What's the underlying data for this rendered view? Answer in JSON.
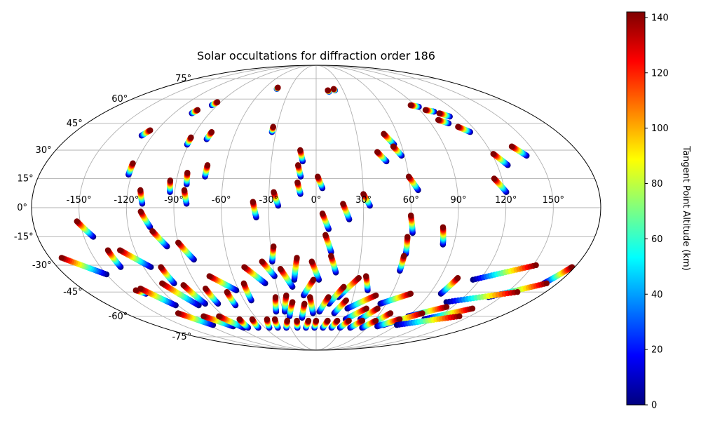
{
  "chart_data": {
    "type": "scatter",
    "projection": "mollweide",
    "title": "Solar occultations for diffraction order 186",
    "lon_ticks": [
      "-150°",
      "-120°",
      "-90°",
      "-60°",
      "-30°",
      "0°",
      "30°",
      "60°",
      "90°",
      "120°",
      "150°"
    ],
    "lat_ticks": [
      "75°",
      "60°",
      "45°",
      "30°",
      "15°",
      "0°",
      "-15°",
      "-30°",
      "-45°",
      "-60°",
      "-75°"
    ],
    "grid": true,
    "colorbar": {
      "label": "Tangent Point Altitude (km)",
      "ticks": [
        "140",
        "120",
        "100",
        "80",
        "60",
        "40",
        "20",
        "0"
      ],
      "range": [
        0,
        142
      ],
      "colormap": "jet",
      "position": "right"
    },
    "occultations": [
      {
        "lon_top": -45,
        "lat_top": 68,
        "lon_bot": -45,
        "lat_bot": 67
      },
      {
        "lon_top": 13,
        "lat_top": 66,
        "lon_bot": 14,
        "lat_bot": 65
      },
      {
        "lon_top": 20,
        "lat_top": 67,
        "lon_bot": 21,
        "lat_bot": 66
      },
      {
        "lon_top": -93,
        "lat_top": 58,
        "lon_bot": -95,
        "lat_bot": 56
      },
      {
        "lon_top": -103,
        "lat_top": 53,
        "lon_bot": -105,
        "lat_bot": 51
      },
      {
        "lon_top": -125,
        "lat_top": 41,
        "lon_bot": -128,
        "lat_bot": 38
      },
      {
        "lon_top": -33,
        "lat_top": 43,
        "lon_bot": -33,
        "lat_bot": 40
      },
      {
        "lon_top": -78,
        "lat_top": 40,
        "lon_bot": -79,
        "lat_bot": 36
      },
      {
        "lon_top": -91,
        "lat_top": 37,
        "lon_bot": -91,
        "lat_bot": 33
      },
      {
        "lon_top": -122,
        "lat_top": 23,
        "lon_bot": -122,
        "lat_bot": 17
      },
      {
        "lon_top": -72,
        "lat_top": 22,
        "lon_bot": -72,
        "lat_bot": 16
      },
      {
        "lon_top": -11,
        "lat_top": 30,
        "lon_bot": -9,
        "lat_bot": 24
      },
      {
        "lon_top": -12,
        "lat_top": 22,
        "lon_bot": -10,
        "lat_bot": 16
      },
      {
        "lon_top": -12,
        "lat_top": 13,
        "lon_bot": -10,
        "lat_bot": 7
      },
      {
        "lon_top": 1,
        "lat_top": 16,
        "lon_bot": 4,
        "lat_bot": 10
      },
      {
        "lon_top": -84,
        "lat_top": 18,
        "lon_bot": -83,
        "lat_bot": 12
      },
      {
        "lon_top": -94,
        "lat_top": 14,
        "lon_bot": -93,
        "lat_bot": 8
      },
      {
        "lon_top": -84,
        "lat_top": 9,
        "lon_bot": -82,
        "lat_bot": 2
      },
      {
        "lon_top": -112,
        "lat_top": 9,
        "lon_bot": -110,
        "lat_bot": 2
      },
      {
        "lon_top": -27,
        "lat_top": 8,
        "lon_bot": -24,
        "lat_bot": 1
      },
      {
        "lon_top": -40,
        "lat_top": 3,
        "lon_bot": -38,
        "lat_bot": -5
      },
      {
        "lon_top": 30,
        "lat_top": 7,
        "lon_bot": 34,
        "lat_bot": 1
      },
      {
        "lon_top": 17,
        "lat_top": 2,
        "lon_bot": 21,
        "lat_bot": -6
      },
      {
        "lon_top": 50,
        "lat_top": 39,
        "lon_bot": 55,
        "lat_bot": 33
      },
      {
        "lon_top": 42,
        "lat_top": 29,
        "lon_bot": 47,
        "lat_bot": 24
      },
      {
        "lon_top": 54,
        "lat_top": 32,
        "lon_bot": 58,
        "lat_bot": 27
      },
      {
        "lon_top": 60,
        "lat_top": 16,
        "lon_bot": 65,
        "lat_bot": 9
      },
      {
        "lon_top": 115,
        "lat_top": 15,
        "lon_bot": 121,
        "lat_bot": 8
      },
      {
        "lon_top": 121,
        "lat_top": 28,
        "lon_bot": 127,
        "lat_bot": 22
      },
      {
        "lon_top": 137,
        "lat_top": 32,
        "lon_bot": 143,
        "lat_bot": 27
      },
      {
        "lon_top": 86,
        "lat_top": 56,
        "lon_bot": 92,
        "lat_bot": 55
      },
      {
        "lon_top": 95,
        "lat_top": 53,
        "lon_bot": 101,
        "lat_bot": 52
      },
      {
        "lon_top": 104,
        "lat_top": 51,
        "lon_bot": 110,
        "lat_bot": 49
      },
      {
        "lon_top": 98,
        "lat_top": 47,
        "lon_bot": 104,
        "lat_bot": 45
      },
      {
        "lon_top": 109,
        "lat_top": 43,
        "lon_bot": 115,
        "lat_bot": 40
      },
      {
        "lon_top": -111,
        "lat_top": -2,
        "lon_bot": -106,
        "lat_bot": -10
      },
      {
        "lon_top": -105,
        "lat_top": -12,
        "lon_bot": -98,
        "lat_bot": -20
      },
      {
        "lon_top": -152,
        "lat_top": -7,
        "lon_bot": -144,
        "lat_bot": -15
      },
      {
        "lon_top": 4,
        "lat_top": -3,
        "lon_bot": 8,
        "lat_bot": -11
      },
      {
        "lon_top": 6,
        "lat_top": -14,
        "lon_bot": 10,
        "lat_bot": -23
      },
      {
        "lon_top": 60,
        "lat_top": -4,
        "lon_bot": 62,
        "lat_bot": -13
      },
      {
        "lon_top": 59,
        "lat_top": -15,
        "lon_bot": 60,
        "lat_bot": -24
      },
      {
        "lon_top": 59,
        "lat_top": -25,
        "lon_bot": 59,
        "lat_bot": -33
      },
      {
        "lon_top": 81,
        "lat_top": -10,
        "lon_bot": 83,
        "lat_bot": -19
      },
      {
        "lon_top": -90,
        "lat_top": -18,
        "lon_bot": -83,
        "lat_bot": -27
      },
      {
        "lon_top": -138,
        "lat_top": -22,
        "lon_bot": -136,
        "lat_bot": -31
      },
      {
        "lon_top": -130,
        "lat_top": -22,
        "lon_bot": -115,
        "lat_bot": -31
      },
      {
        "lon_top": -172,
        "lat_top": -26,
        "lon_bot": -150,
        "lat_bot": -35
      },
      {
        "lon_top": -28,
        "lat_top": -20,
        "lon_bot": -30,
        "lat_bot": -28
      },
      {
        "lon_top": -37,
        "lat_top": -28,
        "lon_bot": -30,
        "lat_bot": -36
      },
      {
        "lon_top": -25,
        "lat_top": -32,
        "lon_bot": -18,
        "lat_bot": -42
      },
      {
        "lon_top": -50,
        "lat_top": -31,
        "lon_bot": -38,
        "lat_bot": -40
      },
      {
        "lon_top": -13,
        "lat_top": -26,
        "lon_bot": -16,
        "lat_bot": -38
      },
      {
        "lon_top": -3,
        "lat_top": -28,
        "lon_bot": 2,
        "lat_bot": -38
      },
      {
        "lon_top": 10,
        "lat_top": -25,
        "lon_bot": 14,
        "lat_bot": -34
      },
      {
        "lon_top": -77,
        "lat_top": -36,
        "lon_bot": -62,
        "lat_bot": -44
      },
      {
        "lon_top": -108,
        "lat_top": -31,
        "lon_bot": -106,
        "lat_bot": -40
      },
      {
        "lon_top": -140,
        "lat_top": -44,
        "lon_bot": -135,
        "lat_bot": -46
      },
      {
        "lon_top": 36,
        "lat_top": -36,
        "lon_bot": 40,
        "lat_bot": -44
      },
      {
        "lon_top": 31,
        "lat_top": -37,
        "lon_bot": 18,
        "lat_bot": -48
      },
      {
        "lon_top": 21,
        "lat_top": -42,
        "lon_bot": 11,
        "lat_bot": -52
      },
      {
        "lon_top": -2,
        "lat_top": -38,
        "lon_bot": -10,
        "lat_bot": -47
      },
      {
        "lon_top": -5,
        "lat_top": -48,
        "lon_bot": -3,
        "lat_bot": -58
      },
      {
        "lon_top": 103,
        "lat_top": -37,
        "lon_bot": 99,
        "lat_bot": -46
      },
      {
        "lon_top": 152,
        "lat_top": -30,
        "lon_bot": 115,
        "lat_bot": -38
      },
      {
        "lon_top": 178,
        "lat_top": -31,
        "lon_bot": 170,
        "lat_bot": -40
      },
      {
        "lon_top": 172,
        "lat_top": -40,
        "lon_bot": 140,
        "lat_bot": -48
      },
      {
        "lon_top": 158,
        "lat_top": -45,
        "lon_bot": 110,
        "lat_bot": -51
      },
      {
        "lon_top": 75,
        "lat_top": -46,
        "lon_bot": 55,
        "lat_bot": -52
      },
      {
        "lon_top": 48,
        "lat_top": -47,
        "lon_bot": 28,
        "lat_bot": -55
      },
      {
        "lon_top": 45,
        "lat_top": -55,
        "lon_bot": 30,
        "lat_bot": -62
      },
      {
        "lon_top": -115,
        "lat_top": -40,
        "lon_bot": -102,
        "lat_bot": -53
      },
      {
        "lon_top": -100,
        "lat_top": -41,
        "lon_bot": -95,
        "lat_bot": -52
      },
      {
        "lon_top": -85,
        "lat_top": -43,
        "lon_bot": -84,
        "lat_bot": -52
      },
      {
        "lon_top": -70,
        "lat_top": -45,
        "lon_bot": -70,
        "lat_bot": -53
      },
      {
        "lon_top": -54,
        "lat_top": -40,
        "lon_bot": -54,
        "lat_bot": -50
      },
      {
        "lon_top": -135,
        "lat_top": -43,
        "lon_bot": -122,
        "lat_bot": -53
      },
      {
        "lon_top": -33,
        "lat_top": -48,
        "lon_bot": -37,
        "lat_bot": -57
      },
      {
        "lon_top": -24,
        "lat_top": -47,
        "lon_bot": -29,
        "lat_bot": -57
      },
      {
        "lon_top": -20,
        "lat_top": -51,
        "lon_bot": -26,
        "lat_bot": -60
      },
      {
        "lon_top": -10,
        "lat_top": -52,
        "lon_bot": -14,
        "lat_bot": -61
      },
      {
        "lon_top": 10,
        "lat_top": -48,
        "lon_bot": 3,
        "lat_bot": -57
      },
      {
        "lon_top": 25,
        "lat_top": -50,
        "lon_bot": 17,
        "lat_bot": -58
      },
      {
        "lon_top": 55,
        "lat_top": -55,
        "lon_bot": 45,
        "lat_bot": -62
      },
      {
        "lon_top": 70,
        "lat_top": -58,
        "lon_bot": 62,
        "lat_bot": -64
      },
      {
        "lon_top": 115,
        "lat_top": -54,
        "lon_bot": 90,
        "lat_bot": -60
      },
      {
        "lon_top": 140,
        "lat_top": -55,
        "lon_bot": 110,
        "lat_bot": -62
      },
      {
        "lon_top": 100,
        "lat_top": -58,
        "lon_bot": 75,
        "lat_bot": -66
      },
      {
        "lon_top": -130,
        "lat_top": -58,
        "lon_bot": -115,
        "lat_bot": -66
      },
      {
        "lon_top": -110,
        "lat_top": -60,
        "lon_bot": -95,
        "lat_bot": -67
      },
      {
        "lon_top": -95,
        "lat_top": -60,
        "lon_bot": -85,
        "lat_bot": -68
      },
      {
        "lon_top": -78,
        "lat_top": -62,
        "lon_bot": -80,
        "lat_bot": -68
      },
      {
        "lon_top": -65,
        "lat_top": -62,
        "lon_bot": -68,
        "lat_bot": -68
      },
      {
        "lon_top": -50,
        "lat_top": -62,
        "lon_bot": -55,
        "lat_bot": -68
      },
      {
        "lon_top": -42,
        "lat_top": -62,
        "lon_bot": -45,
        "lat_bot": -68
      },
      {
        "lon_top": -30,
        "lat_top": -63,
        "lon_bot": -35,
        "lat_bot": -68
      },
      {
        "lon_top": -20,
        "lat_top": -63,
        "lon_bot": -22,
        "lat_bot": -68
      },
      {
        "lon_top": -8,
        "lat_top": -63,
        "lon_bot": -12,
        "lat_bot": -68
      },
      {
        "lon_top": 0,
        "lat_top": -63,
        "lon_bot": -2,
        "lat_bot": -68
      },
      {
        "lon_top": 12,
        "lat_top": -63,
        "lon_bot": 8,
        "lat_bot": -68
      },
      {
        "lon_top": 22,
        "lat_top": -63,
        "lon_bot": 18,
        "lat_bot": -68
      },
      {
        "lon_top": 34,
        "lat_top": -63,
        "lon_bot": 28,
        "lat_bot": -68
      },
      {
        "lon_top": 48,
        "lat_top": -63,
        "lon_bot": 40,
        "lat_bot": -68
      },
      {
        "lon_top": 62,
        "lat_top": -63,
        "lon_bot": 54,
        "lat_bot": -68
      },
      {
        "lon_top": 85,
        "lat_top": -62,
        "lon_bot": 70,
        "lat_bot": -67
      },
      {
        "lon_top": 140,
        "lat_top": -60,
        "lon_bot": 90,
        "lat_bot": -66
      }
    ]
  }
}
